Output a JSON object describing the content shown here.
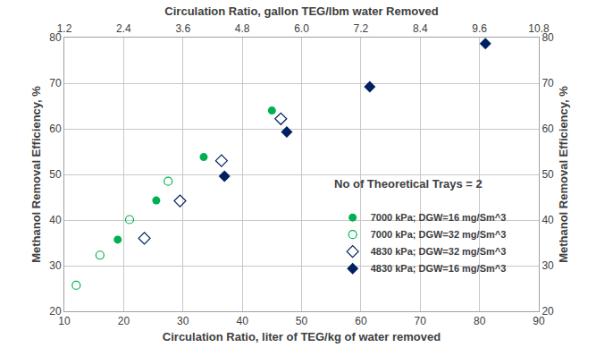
{
  "chart_data": {
    "type": "scatter",
    "xlabel": "Circulation Ratio, liter of TEG/kg of water removed",
    "x2label": "Circulation Ratio, gallon TEG/lbm water Removed",
    "ylabel": "Methanol Removal Efficiency, %",
    "y2label": "Methanol Removal Efficiency, %",
    "xlim": [
      10,
      90
    ],
    "xticks": [
      10,
      20,
      30,
      40,
      50,
      60,
      70,
      80,
      90
    ],
    "x2lim": [
      1.2,
      10.8
    ],
    "x2ticks": [
      1.2,
      2.4,
      3.6,
      4.8,
      {
        "value": 6,
        "label": "6.0"
      },
      7.2,
      8.4,
      9.6,
      10.8
    ],
    "ylim": [
      20,
      80
    ],
    "yticks": [
      20,
      30,
      40,
      50,
      60,
      70,
      80
    ],
    "y2lim": [
      20,
      80
    ],
    "y2ticks": [
      20,
      30,
      40,
      50,
      60,
      70,
      80
    ],
    "grid": true,
    "legend": "lower right",
    "annotations": [
      {
        "text": "No of Theoretical Trays = 2",
        "x": 68,
        "y": 48
      }
    ],
    "series": [
      {
        "name": "7000 kPa; DGW=16 mg/Sm^3",
        "color": "#00b050",
        "marker": "circle",
        "x": [
          19,
          25.5,
          33.5,
          45
        ],
        "values": [
          35.7,
          44.3,
          53.8,
          64
        ]
      },
      {
        "name": "7000 kPa; DGW=32 mg/Sm^3",
        "color": "#00b050",
        "marker": "circle-open",
        "x": [
          12,
          16,
          21,
          27.5
        ],
        "values": [
          25.7,
          32.3,
          40.1,
          48.5
        ]
      },
      {
        "name": "4830 kPa; DGW=32 mg/Sm^3",
        "color": "#002060",
        "marker": "diamond-open",
        "x": [
          23.5,
          29.5,
          36.5,
          46.5
        ],
        "values": [
          36,
          44.2,
          53,
          62.2
        ]
      },
      {
        "name": "4830 kPa; DGW=16 mg/Sm^3",
        "color": "#002060",
        "marker": "diamond",
        "x": [
          37,
          47.5,
          61.5,
          81
        ],
        "values": [
          49.6,
          59.3,
          69.2,
          78.7
        ]
      }
    ]
  }
}
